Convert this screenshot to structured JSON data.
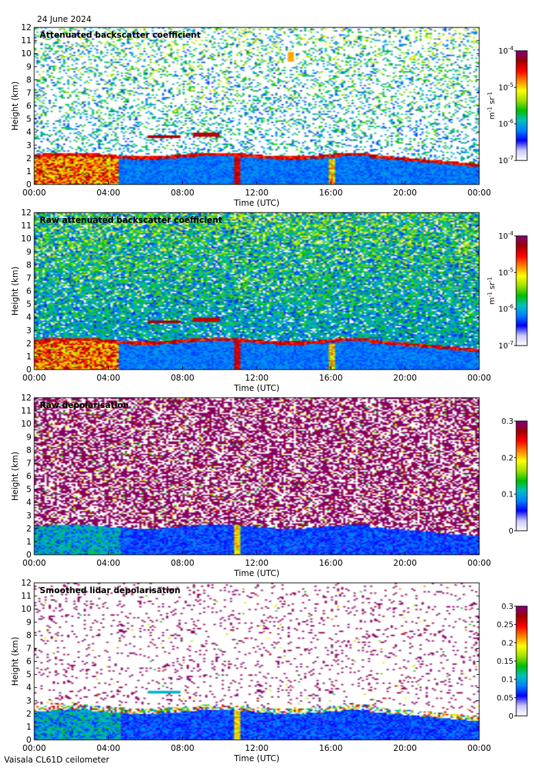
{
  "date_label": "24 June 2024",
  "footer": "Vaisala CL61D ceilometer",
  "chart_data": [
    {
      "type": "heatmap",
      "title": "Attenuated backscatter coefficient",
      "xlabel": "Time (UTC)",
      "ylabel": "Height (km)",
      "xticks": [
        "00:00",
        "04:00",
        "08:00",
        "12:00",
        "16:00",
        "20:00",
        "00:00"
      ],
      "yticks": [
        0,
        1,
        2,
        3,
        4,
        5,
        6,
        7,
        8,
        9,
        10,
        11,
        12
      ],
      "xlim": [
        0,
        24
      ],
      "ylim": [
        0,
        12
      ],
      "colorbar": {
        "scale": "log",
        "ticks": [
          "10-7",
          "10-6",
          "10-5",
          "10-4"
        ],
        "unit": "m-1 sr-1"
      },
      "features": {
        "boundary_layer_top_km": 2.1,
        "dense_cloud_until_h": 4.5,
        "cloud_layers_km": [
          3.7,
          3.8,
          9.8
        ],
        "noise_level": 0.25
      }
    },
    {
      "type": "heatmap",
      "title": "Raw attenuated backscatter coefficient",
      "xlabel": "Time (UTC)",
      "ylabel": "Height (km)",
      "xticks": [
        "00:00",
        "04:00",
        "08:00",
        "12:00",
        "16:00",
        "20:00",
        "00:00"
      ],
      "yticks": [
        0,
        1,
        2,
        3,
        4,
        5,
        6,
        7,
        8,
        9,
        10,
        11,
        12
      ],
      "xlim": [
        0,
        24
      ],
      "ylim": [
        0,
        12
      ],
      "colorbar": {
        "scale": "log",
        "ticks": [
          "10-7",
          "10-6",
          "10-5",
          "10-4"
        ],
        "unit": "m-1 sr-1"
      },
      "features": {
        "boundary_layer_top_km": 2.1,
        "dense_cloud_until_h": 4.5,
        "cloud_layers_km": [
          3.7,
          3.8
        ],
        "noise_level": 0.9
      }
    },
    {
      "type": "heatmap",
      "title": "Raw depolarisation",
      "xlabel": "Time (UTC)",
      "ylabel": "Height (km)",
      "xticks": [
        "00:00",
        "04:00",
        "08:00",
        "12:00",
        "16:00",
        "20:00",
        "00:00"
      ],
      "yticks": [
        0,
        1,
        2,
        3,
        4,
        5,
        6,
        7,
        8,
        9,
        10,
        11,
        12
      ],
      "xlim": [
        0,
        24
      ],
      "ylim": [
        0,
        12
      ],
      "colorbar": {
        "scale": "linear",
        "ticks": [
          "0",
          "0.1",
          "0.2",
          "0.3"
        ],
        "range": [
          0,
          0.3
        ]
      },
      "features": {
        "boundary_layer_top_km": 2.2,
        "noise_level": 1.0
      }
    },
    {
      "type": "heatmap",
      "title": "Smoothed lidar depolarisation",
      "xlabel": "Time (UTC)",
      "ylabel": "Height (km)",
      "xticks": [
        "00:00",
        "04:00",
        "08:00",
        "12:00",
        "16:00",
        "20:00",
        "00:00"
      ],
      "yticks": [
        0,
        1,
        2,
        3,
        4,
        5,
        6,
        7,
        8,
        9,
        10,
        11,
        12
      ],
      "xlim": [
        0,
        24
      ],
      "ylim": [
        0,
        12
      ],
      "colorbar": {
        "scale": "linear",
        "ticks": [
          "0",
          "0.05",
          "0.1",
          "0.15",
          "0.2",
          "0.25",
          "0.3"
        ],
        "range": [
          0,
          0.3
        ]
      },
      "features": {
        "boundary_layer_top_km": 2.2,
        "noise_level": 0.15
      }
    }
  ],
  "colors": {
    "colormap": [
      "#ffffff",
      "#c8c8ff",
      "#0000ff",
      "#0080ff",
      "#00c0c0",
      "#00c000",
      "#a0e000",
      "#ffff00",
      "#ff8000",
      "#ff0000",
      "#a00000",
      "#800080"
    ]
  }
}
